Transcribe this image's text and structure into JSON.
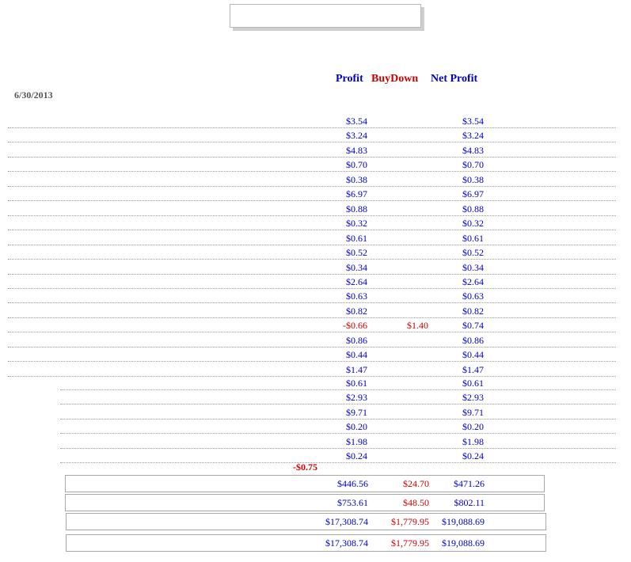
{
  "colors": {
    "blue": "#0000cc",
    "red": "#cc0000",
    "gray": "#555555"
  },
  "header": {
    "profit": "Profit",
    "buydown": "BuyDown",
    "net_profit": "Net Profit"
  },
  "date": "6/30/2013",
  "rows_group1": [
    {
      "profit": "$3.54",
      "buydown": "",
      "net": "$3.54",
      "profit_negative": false
    },
    {
      "profit": "$3.24",
      "buydown": "",
      "net": "$3.24",
      "profit_negative": false
    },
    {
      "profit": "$4.83",
      "buydown": "",
      "net": "$4.83",
      "profit_negative": false
    },
    {
      "profit": "$0.70",
      "buydown": "",
      "net": "$0.70",
      "profit_negative": false
    },
    {
      "profit": "$0.38",
      "buydown": "",
      "net": "$0.38",
      "profit_negative": false
    },
    {
      "profit": "$6.97",
      "buydown": "",
      "net": "$6.97",
      "profit_negative": false
    },
    {
      "profit": "$0.88",
      "buydown": "",
      "net": "$0.88",
      "profit_negative": false
    },
    {
      "profit": "$0.32",
      "buydown": "",
      "net": "$0.32",
      "profit_negative": false
    },
    {
      "profit": "$0.61",
      "buydown": "",
      "net": "$0.61",
      "profit_negative": false
    },
    {
      "profit": "$0.52",
      "buydown": "",
      "net": "$0.52",
      "profit_negative": false
    },
    {
      "profit": "$0.34",
      "buydown": "",
      "net": "$0.34",
      "profit_negative": false
    },
    {
      "profit": "$2.64",
      "buydown": "",
      "net": "$2.64",
      "profit_negative": false
    },
    {
      "profit": "$0.63",
      "buydown": "",
      "net": "$0.63",
      "profit_negative": false
    },
    {
      "profit": "$0.82",
      "buydown": "",
      "net": "$0.82",
      "profit_negative": false
    },
    {
      "profit": "-$0.66",
      "buydown": "$1.40",
      "net": "$0.74",
      "profit_negative": true
    },
    {
      "profit": "$0.86",
      "buydown": "",
      "net": "$0.86",
      "profit_negative": false
    },
    {
      "profit": "$0.44",
      "buydown": "",
      "net": "$0.44",
      "profit_negative": false
    },
    {
      "profit": "$1.47",
      "buydown": "",
      "net": "$1.47",
      "profit_negative": false
    }
  ],
  "rows_group2": [
    {
      "profit": "$0.61",
      "buydown": "",
      "net": "$0.61",
      "profit_negative": false
    },
    {
      "profit": "$2.93",
      "buydown": "",
      "net": "$2.93",
      "profit_negative": false
    },
    {
      "profit": "$9.71",
      "buydown": "",
      "net": "$9.71",
      "profit_negative": false
    },
    {
      "profit": "$0.20",
      "buydown": "",
      "net": "$0.20",
      "profit_negative": false
    },
    {
      "profit": "$1.98",
      "buydown": "",
      "net": "$1.98",
      "profit_negative": false
    },
    {
      "profit": "$0.24",
      "buydown": "",
      "net": "$0.24",
      "profit_negative": false
    }
  ],
  "subtotal_negative": "-$0.75",
  "totals": [
    {
      "profit": "$446.56",
      "buydown": "$24.70",
      "net": "$471.26"
    },
    {
      "profit": "$753.61",
      "buydown": "$48.50",
      "net": "$802.11"
    },
    {
      "profit": "$17,308.74",
      "buydown": "$1,779.95",
      "net": "$19,088.69"
    },
    {
      "profit": "$17,308.74",
      "buydown": "$1,779.95",
      "net": "$19,088.69"
    }
  ]
}
